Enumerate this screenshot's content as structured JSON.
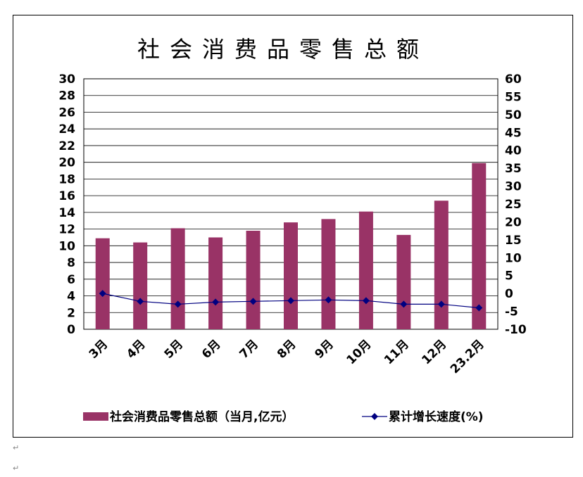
{
  "chart_data": {
    "type": "bar",
    "title": "社会消费品零售总额",
    "categories": [
      "3月",
      "4月",
      "5月",
      "6月",
      "7月",
      "8月",
      "9月",
      "10月",
      "11月",
      "12月",
      "23.2月"
    ],
    "series": [
      {
        "name": "社会消费品零售总额（当月,亿元）",
        "type": "bar",
        "axis": "left",
        "values": [
          10.9,
          10.4,
          12.1,
          11.0,
          11.8,
          12.8,
          13.2,
          14.1,
          11.3,
          15.4,
          19.9
        ]
      },
      {
        "name": "累计增长速度(%)",
        "type": "line",
        "axis": "right",
        "values": [
          0,
          -2.2,
          -3.0,
          -2.4,
          -2.2,
          -2.0,
          -1.8,
          -2.0,
          -3.0,
          -3.0,
          -4.0
        ]
      }
    ],
    "left_axis": {
      "min": 0,
      "max": 30,
      "step": 2,
      "ticks": [
        "0",
        "2",
        "4",
        "6",
        "8",
        "10",
        "12",
        "14",
        "16",
        "18",
        "20",
        "22",
        "24",
        "26",
        "28",
        "30"
      ]
    },
    "right_axis": {
      "min": -10,
      "max": 60,
      "step": 5,
      "ticks": [
        "-10",
        "-5",
        "0",
        "5",
        "10",
        "15",
        "20",
        "25",
        "30",
        "35",
        "40",
        "45",
        "50",
        "55",
        "60"
      ]
    },
    "grid": true,
    "legend": "bottom",
    "colors": {
      "bar": "#993366",
      "line": "#000080"
    }
  },
  "page_marks": [
    "↵",
    "↵"
  ]
}
